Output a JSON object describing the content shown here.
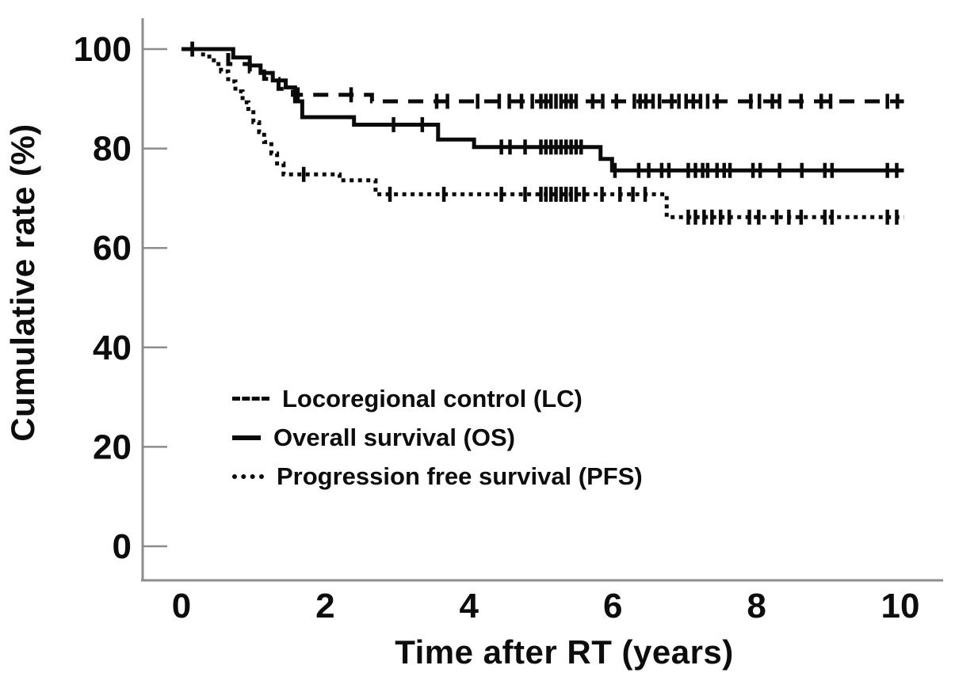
{
  "figure": {
    "background": "#ffffff",
    "curve_color": "#0a0a0a",
    "axis_color": "#8c8c8c",
    "text_color": "#0d0d0d"
  },
  "chart_data": {
    "type": "line",
    "subtype": "kaplan-meier-step",
    "title": "",
    "xlabel": "Time after RT (years)",
    "ylabel": "Cumulative rate (%)",
    "xlim": [
      0,
      10.5
    ],
    "ylim": [
      0,
      105
    ],
    "x_ticks": [
      0,
      2,
      4,
      6,
      8,
      10
    ],
    "y_ticks": [
      0,
      20,
      40,
      60,
      80,
      100
    ],
    "grid": false,
    "legend_position": "inside-lower-left",
    "series": [
      {
        "name": "LC",
        "label": "Locoregional control (LC)",
        "line_style": "dashed",
        "end_time": 10.05,
        "steps": [
          [
            0,
            100
          ],
          [
            0.65,
            97
          ],
          [
            0.95,
            95.5
          ],
          [
            1.15,
            94
          ],
          [
            1.35,
            92
          ],
          [
            1.55,
            90.8
          ],
          [
            2.65,
            89.5
          ]
        ],
        "censor_times": [
          0.15,
          1.62,
          2.36,
          3.55,
          3.7,
          4.12,
          4.42,
          4.56,
          4.73,
          4.88,
          5.0,
          5.07,
          5.14,
          5.21,
          5.28,
          5.35,
          5.42,
          5.49,
          5.72,
          5.86,
          6.05,
          6.3,
          6.38,
          6.46,
          6.56,
          6.65,
          6.82,
          6.92,
          7.02,
          7.12,
          7.22,
          7.32,
          7.45,
          7.92,
          8.04,
          8.22,
          8.32,
          8.62,
          8.9,
          9.03,
          9.82,
          9.96
        ]
      },
      {
        "name": "OS",
        "label": "Overall survival (OS)",
        "line_style": "solid",
        "end_time": 10.05,
        "steps": [
          [
            0,
            100
          ],
          [
            0.72,
            98.3
          ],
          [
            0.95,
            96.7
          ],
          [
            1.1,
            95.2
          ],
          [
            1.27,
            93.7
          ],
          [
            1.45,
            92.3
          ],
          [
            1.58,
            89.5
          ],
          [
            1.68,
            86.3
          ],
          [
            2.4,
            84.8
          ],
          [
            3.57,
            81.8
          ],
          [
            4.07,
            80.3
          ],
          [
            5.83,
            77.9
          ],
          [
            5.99,
            75.6
          ]
        ],
        "censor_times": [
          0.15,
          2.95,
          3.35,
          4.45,
          4.57,
          4.78,
          5.0,
          5.07,
          5.14,
          5.21,
          5.28,
          5.35,
          5.42,
          5.49,
          5.56,
          6.03,
          6.36,
          6.5,
          6.68,
          6.78,
          7.05,
          7.15,
          7.25,
          7.32,
          7.45,
          7.55,
          7.63,
          7.95,
          8.05,
          8.32,
          8.63,
          8.95,
          9.05,
          9.82,
          9.95
        ]
      },
      {
        "name": "PFS",
        "label": "Progression free survival (PFS)",
        "line_style": "dotted",
        "end_time": 10.05,
        "steps": [
          [
            0,
            100
          ],
          [
            0.3,
            98.5
          ],
          [
            0.45,
            97
          ],
          [
            0.55,
            95.5
          ],
          [
            0.65,
            93.5
          ],
          [
            0.75,
            91.5
          ],
          [
            0.85,
            89.3
          ],
          [
            0.93,
            87.3
          ],
          [
            1.0,
            85.3
          ],
          [
            1.08,
            83.3
          ],
          [
            1.15,
            81.3
          ],
          [
            1.25,
            79
          ],
          [
            1.33,
            77
          ],
          [
            1.42,
            74.8
          ],
          [
            2.2,
            73.6
          ],
          [
            2.7,
            70.8
          ],
          [
            6.75,
            66.2
          ]
        ],
        "censor_times": [
          1.7,
          2.9,
          3.65,
          4.45,
          4.78,
          5.0,
          5.07,
          5.14,
          5.21,
          5.28,
          5.35,
          5.42,
          5.49,
          5.6,
          5.85,
          6.1,
          6.28,
          6.45,
          7.05,
          7.15,
          7.27,
          7.38,
          7.5,
          7.62,
          7.9,
          8.03,
          8.28,
          8.45,
          8.62,
          8.95,
          9.05,
          9.82,
          9.95
        ]
      }
    ]
  }
}
